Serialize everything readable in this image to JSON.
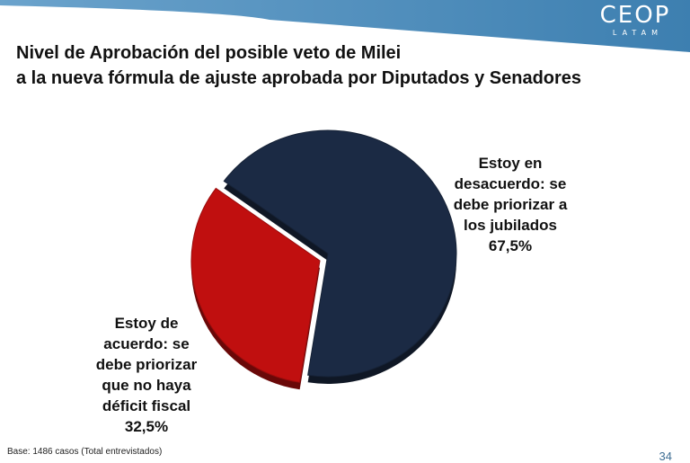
{
  "brand": {
    "name": "CEOP",
    "sub": "LATAM"
  },
  "title": {
    "line1": "Nivel de Aprobación del posible veto de Milei",
    "line2": "a la nueva fórmula de ajuste aprobada por Diputados y Senadores"
  },
  "chart_data": {
    "type": "pie",
    "title": "Nivel de Aprobación del posible veto de Milei a la nueva fórmula de ajuste aprobada por Diputados y Senadores",
    "slices": [
      {
        "label": "Estoy en desacuerdo: se debe priorizar a los jubilados",
        "value": 67.5,
        "value_label": "67,5%",
        "color": "#1b2a44"
      },
      {
        "label": "Estoy de acuerdo: se debe priorizar que no haya déficit fiscal",
        "value": 32.5,
        "value_label": "32,5%",
        "color": "#c00f0f"
      }
    ]
  },
  "labels": {
    "right_lines": [
      "Estoy en",
      "desacuerdo: se",
      "debe priorizar a",
      "los jubilados"
    ],
    "right_value": "67,5%",
    "left_lines": [
      "Estoy de",
      "acuerdo: se",
      "debe priorizar",
      "que no haya",
      "déficit fiscal"
    ],
    "left_value": "32,5%"
  },
  "footer": {
    "note": "Base: 1486 casos (Total entrevistados)",
    "page": "34"
  },
  "colors": {
    "banner": "#3d7fb0",
    "banner_light": "#6ba3cc"
  }
}
